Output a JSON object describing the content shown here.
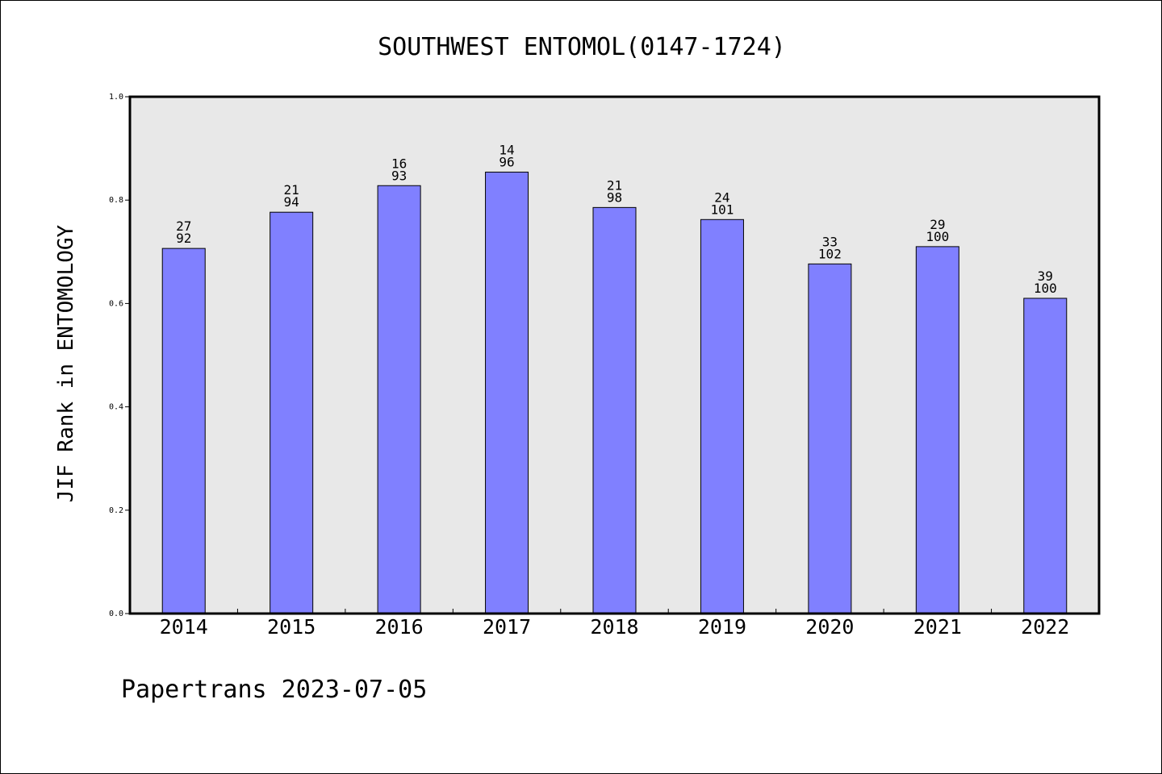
{
  "chart_data": {
    "type": "bar",
    "title": "SOUTHWEST ENTOMOL(0147-1724)",
    "ylabel": "JIF Rank in ENTOMOLOGY",
    "xlabel": "",
    "ylim": [
      0,
      1.0
    ],
    "yticks": [
      "0.0",
      "0.2",
      "0.4",
      "0.6",
      "0.8",
      "1.0"
    ],
    "categories": [
      "2014",
      "2015",
      "2016",
      "2017",
      "2018",
      "2019",
      "2020",
      "2021",
      "2022"
    ],
    "values": [
      0.7065,
      0.7766,
      0.828,
      0.8542,
      0.7857,
      0.7624,
      0.6765,
      0.71,
      0.61
    ],
    "ranks": [
      "27",
      "21",
      "16",
      "14",
      "21",
      "24",
      "33",
      "29",
      "39"
    ],
    "totals": [
      "92",
      "94",
      "93",
      "96",
      "98",
      "101",
      "102",
      "100",
      "100"
    ],
    "bar_color": "#8080ff",
    "plot_background": "#e8e8e8",
    "grid": false
  },
  "footer": "Papertrans 2023-07-05"
}
